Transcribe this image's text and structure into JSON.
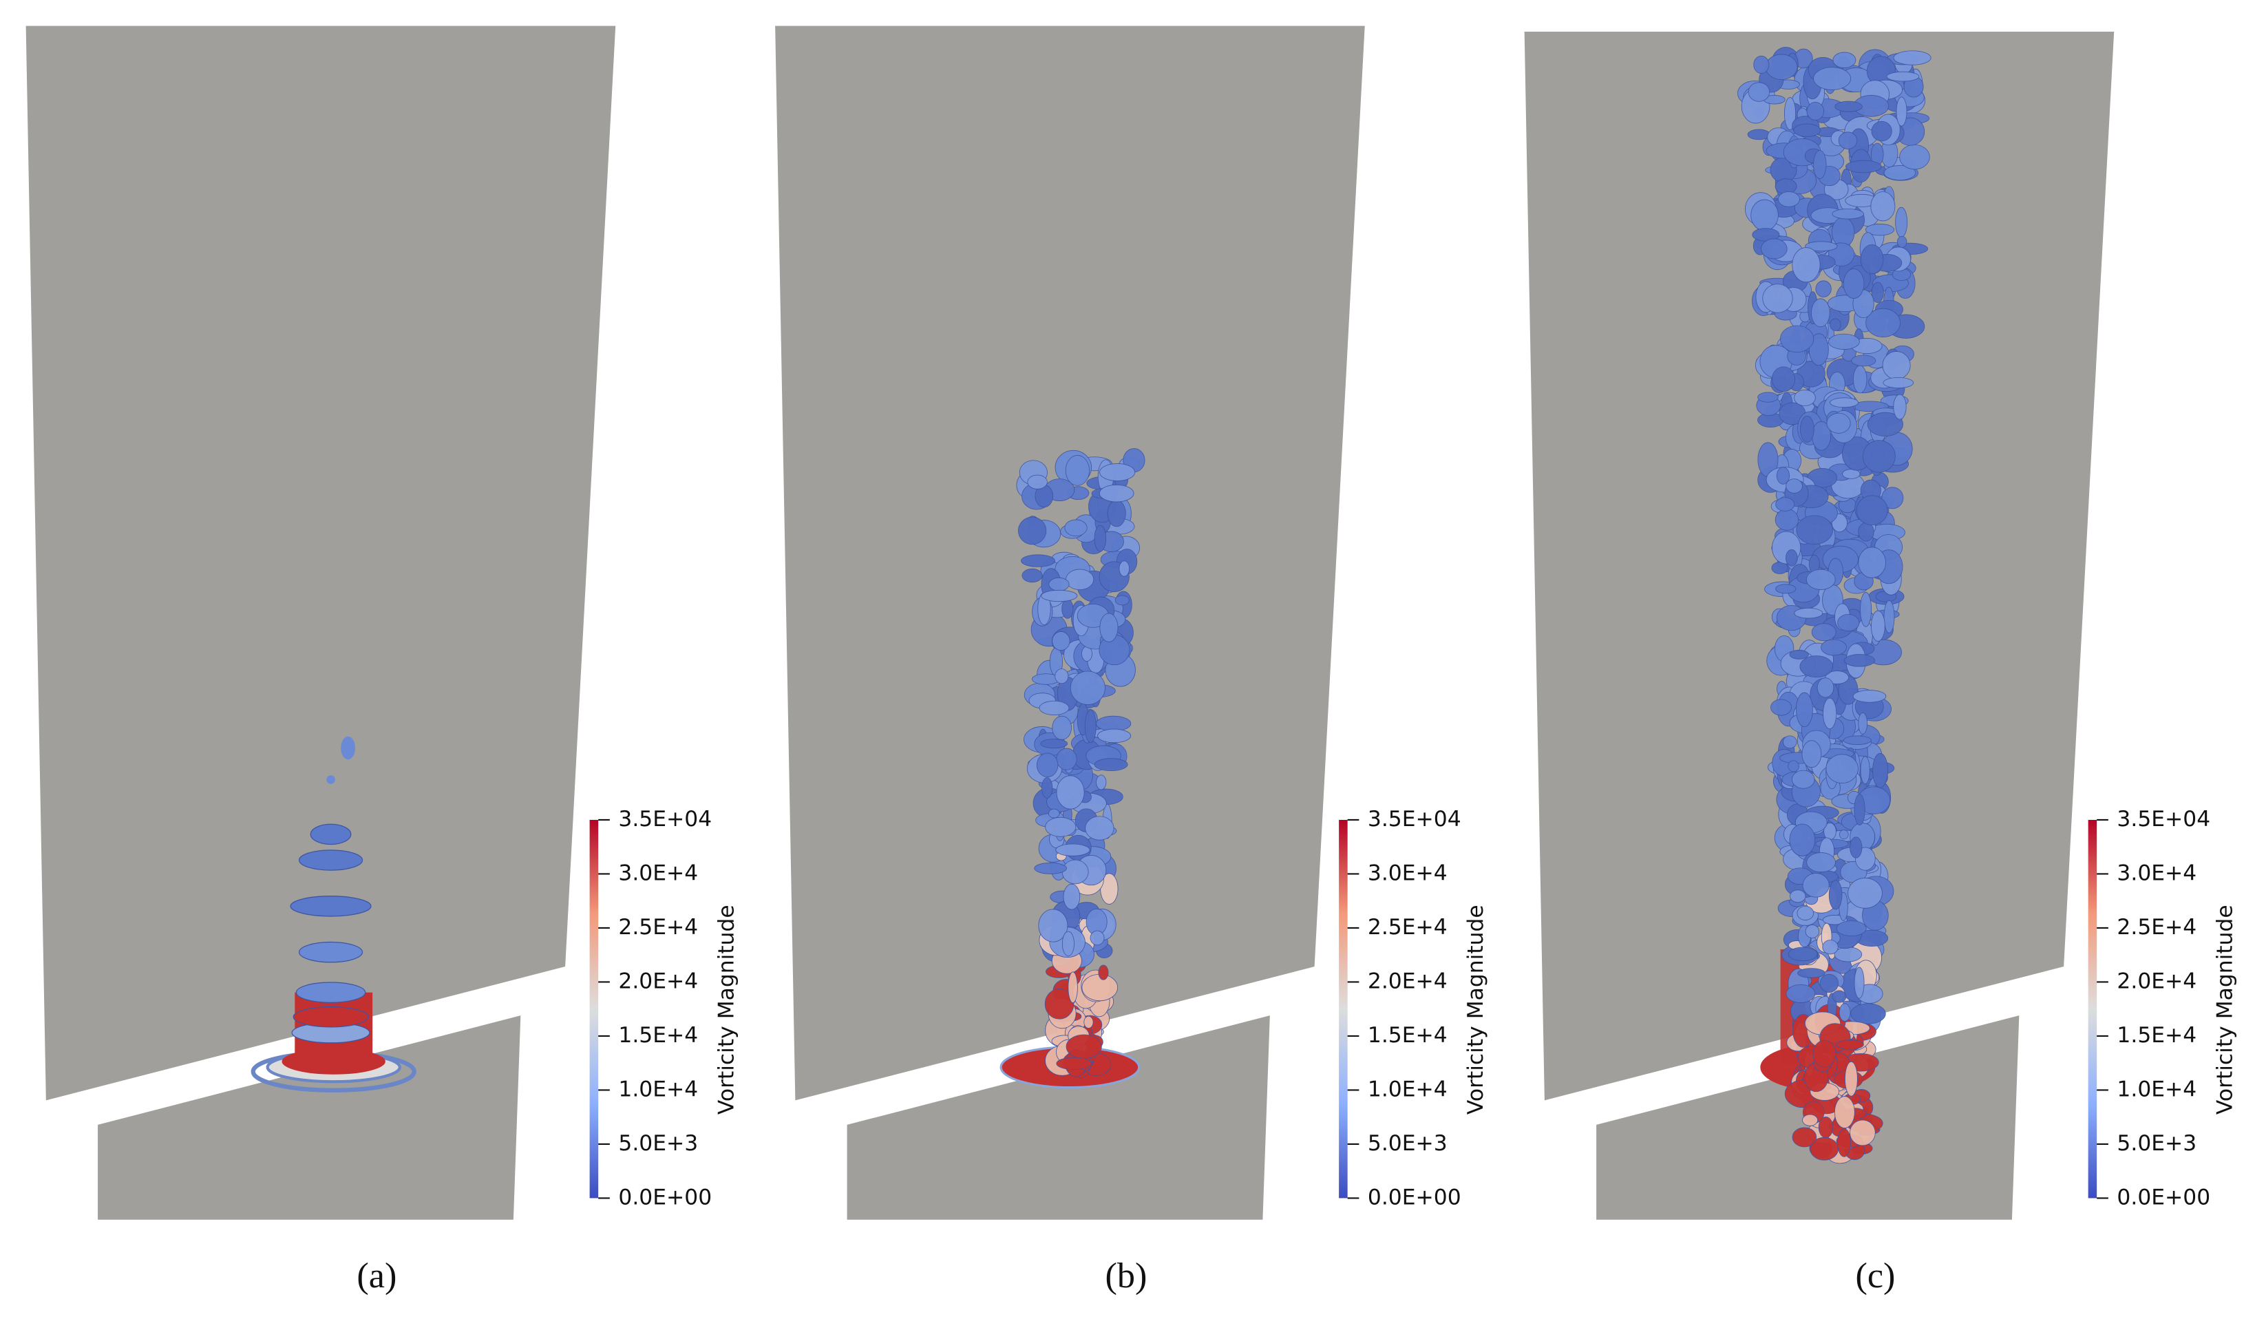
{
  "panels": [
    {
      "label": "(a)"
    },
    {
      "label": "(b)"
    },
    {
      "label": "(c)"
    }
  ],
  "colorbar": {
    "title": "Vorticity Magnitude",
    "range": [
      0,
      35000
    ],
    "ticks": [
      {
        "value": 0,
        "label": "0.0E+00"
      },
      {
        "value": 5000,
        "label": "5.0E+3"
      },
      {
        "value": 10000,
        "label": "1.0E+4"
      },
      {
        "value": 15000,
        "label": "1.5E+4"
      },
      {
        "value": 20000,
        "label": "2.0E+4"
      },
      {
        "value": 25000,
        "label": "2.5E+4"
      },
      {
        "value": 30000,
        "label": "3.0E+4"
      },
      {
        "value": 35000,
        "label": "3.5E+04"
      }
    ]
  }
}
